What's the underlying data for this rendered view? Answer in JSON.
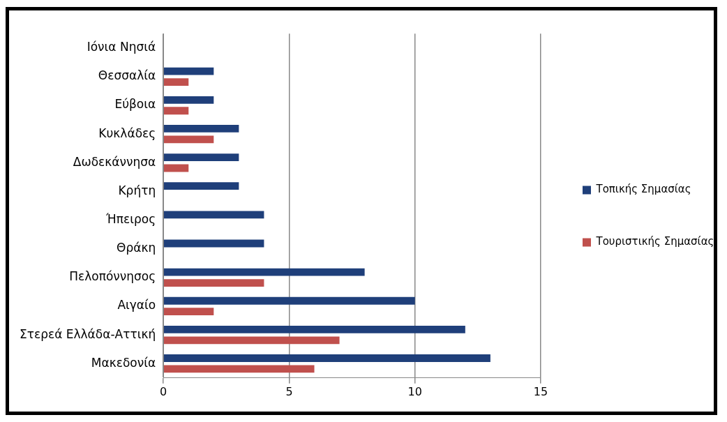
{
  "chart_data": {
    "type": "bar",
    "orientation": "horizontal",
    "categories": [
      "Ιόνια Νησιά",
      "Θεσσαλία",
      "Εύβοια",
      "Κυκλάδες",
      "Δωδεκάννησα",
      "Κρήτη",
      "Ήπειρος",
      "Θράκη",
      "Πελοπόννησος",
      "Αιγαίο",
      "Στερεά Ελλάδα-Αττική",
      "Μακεδονία"
    ],
    "series": [
      {
        "name": "Τοπικής Σημασίας",
        "color": "#1f3f7a",
        "values": [
          0,
          2,
          2,
          3,
          3,
          3,
          4,
          4,
          8,
          10,
          12,
          13
        ]
      },
      {
        "name": "Τουριστικής Σημασίας",
        "color": "#c0504d",
        "values": [
          0,
          1,
          1,
          2,
          1,
          0,
          0,
          0,
          4,
          2,
          7,
          6
        ]
      }
    ],
    "xlim": [
      0,
      15
    ],
    "xticks": [
      0,
      5,
      10,
      15
    ],
    "grid": "x",
    "legend": "right"
  }
}
